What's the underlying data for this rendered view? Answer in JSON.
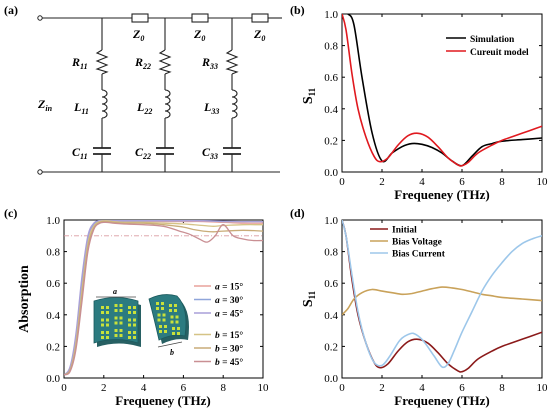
{
  "figure": {
    "panel_a": {
      "label": "(a)",
      "zin_label": "Z",
      "zin_sub": "in",
      "z0_label": "Z",
      "z0_sub": "0",
      "r_labels": [
        "R",
        "R",
        "R"
      ],
      "r_subs": [
        "11",
        "22",
        "33"
      ],
      "l_labels": [
        "L",
        "L",
        "L"
      ],
      "l_subs": [
        "11",
        "22",
        "33"
      ],
      "c_labels": [
        "C",
        "C",
        "C"
      ],
      "c_subs": [
        "11",
        "22",
        "33"
      ]
    },
    "panel_b": {
      "label": "(b)"
    },
    "panel_c": {
      "label": "(c)",
      "inset_label_a": "a",
      "inset_label_b": "b"
    },
    "panel_d": {
      "label": "(d)"
    }
  },
  "chart_data": [
    {
      "type": "line",
      "panel": "b",
      "xlabel": "Frequeney (THz)",
      "ylabel": "S",
      "ylabel_sub": "11",
      "xlim": [
        0,
        10
      ],
      "ylim": [
        0,
        1.0
      ],
      "xticks": [
        "0",
        "2",
        "4",
        "6",
        "8",
        "10"
      ],
      "yticks": [
        "0.0",
        "0.2",
        "0.4",
        "0.6",
        "0.8",
        "1.0"
      ],
      "legend_position": "top-right",
      "series": [
        {
          "name": "Simulation",
          "color": "#000000",
          "x": [
            0,
            0.3,
            0.6,
            1.0,
            1.5,
            2.0,
            2.5,
            3.0,
            3.5,
            4.0,
            4.5,
            5.0,
            5.5,
            6.0,
            6.5,
            7.0,
            7.5,
            8.0,
            9.0,
            10.0
          ],
          "y": [
            1.0,
            1.0,
            0.93,
            0.6,
            0.25,
            0.07,
            0.12,
            0.16,
            0.18,
            0.175,
            0.155,
            0.12,
            0.07,
            0.04,
            0.1,
            0.16,
            0.18,
            0.195,
            0.205,
            0.215
          ]
        },
        {
          "name": "Cureuit model",
          "color": "#e0191f",
          "x": [
            0,
            0.2,
            0.5,
            0.8,
            1.2,
            1.6,
            1.9,
            2.3,
            2.8,
            3.3,
            3.8,
            4.3,
            4.8,
            5.3,
            5.8,
            6.0,
            6.3,
            6.8,
            7.5,
            8.0,
            9.0,
            10.0
          ],
          "y": [
            1.0,
            0.9,
            0.62,
            0.4,
            0.22,
            0.1,
            0.065,
            0.09,
            0.17,
            0.23,
            0.245,
            0.22,
            0.16,
            0.09,
            0.045,
            0.04,
            0.06,
            0.12,
            0.17,
            0.2,
            0.245,
            0.29
          ]
        }
      ]
    },
    {
      "type": "line",
      "panel": "c",
      "xlabel": "Frequeney (THz)",
      "ylabel": "Absorption",
      "xlim": [
        0,
        10
      ],
      "ylim": [
        0,
        1.0
      ],
      "xticks": [
        "0",
        "2",
        "4",
        "6",
        "8",
        "10"
      ],
      "yticks": [
        "0.0",
        "0.2",
        "0.4",
        "0.6",
        "0.8",
        "1.0"
      ],
      "reference_line": 0.9,
      "legend_position": "bottom-right",
      "series": [
        {
          "name": "a = 15°",
          "legend_var": "a",
          "legend_val": " = 15°",
          "color": "#e9a29c",
          "x": [
            0,
            0.3,
            0.6,
            0.9,
            1.2,
            1.5,
            1.8,
            2.1,
            2.5,
            3.0,
            4.0,
            5.0,
            6.0,
            7.0,
            8.0,
            9.0,
            10.0
          ],
          "y": [
            0.02,
            0.06,
            0.25,
            0.6,
            0.88,
            0.97,
            0.99,
            0.995,
            0.995,
            0.99,
            0.99,
            0.99,
            0.99,
            0.99,
            0.985,
            0.98,
            0.98
          ]
        },
        {
          "name": "a = 30°",
          "legend_var": "a",
          "legend_val": " = 30°",
          "color": "#8fa5da",
          "x": [
            0,
            0.3,
            0.6,
            0.9,
            1.2,
            1.5,
            1.8,
            2.1,
            2.5,
            3.0,
            4.0,
            5.0,
            6.0,
            7.0,
            8.0,
            9.0,
            10.0
          ],
          "y": [
            0.02,
            0.06,
            0.26,
            0.62,
            0.89,
            0.975,
            0.995,
            0.998,
            0.997,
            0.995,
            0.995,
            0.995,
            0.995,
            0.995,
            0.99,
            0.99,
            0.99
          ]
        },
        {
          "name": "a = 45°",
          "legend_var": "a",
          "legend_val": " = 45°",
          "color": "#a89fd8",
          "x": [
            0,
            0.3,
            0.6,
            0.9,
            1.2,
            1.5,
            1.8,
            2.1,
            2.5,
            3.0,
            4.0,
            5.0,
            6.0,
            7.0,
            8.0,
            9.0,
            10.0
          ],
          "y": [
            0.02,
            0.07,
            0.28,
            0.64,
            0.9,
            0.98,
            0.997,
            0.999,
            0.998,
            0.997,
            0.997,
            0.996,
            0.996,
            0.995,
            0.993,
            0.99,
            0.99
          ]
        },
        {
          "name": "b = 15°",
          "legend_var": "b",
          "legend_val": " = 15°",
          "color": "#d5c386",
          "x": [
            0,
            0.3,
            0.6,
            0.9,
            1.2,
            1.5,
            1.8,
            2.1,
            2.5,
            3.0,
            4.0,
            5.0,
            6.0,
            6.5,
            7.0,
            7.5,
            8.0,
            9.0,
            10.0
          ],
          "y": [
            0.02,
            0.05,
            0.22,
            0.55,
            0.85,
            0.96,
            0.99,
            0.995,
            0.99,
            0.985,
            0.985,
            0.98,
            0.975,
            0.97,
            0.965,
            0.96,
            0.965,
            0.97,
            0.97
          ]
        },
        {
          "name": "b = 30°",
          "legend_var": "b",
          "legend_val": " = 30°",
          "color": "#c9ac78",
          "x": [
            0,
            0.3,
            0.6,
            0.9,
            1.2,
            1.5,
            1.8,
            2.1,
            2.5,
            3.0,
            4.0,
            5.0,
            6.0,
            6.5,
            7.0,
            7.5,
            8.0,
            9.0,
            10.0
          ],
          "y": [
            0.02,
            0.05,
            0.2,
            0.52,
            0.83,
            0.95,
            0.985,
            0.99,
            0.985,
            0.98,
            0.98,
            0.97,
            0.955,
            0.94,
            0.93,
            0.925,
            0.93,
            0.935,
            0.93
          ]
        },
        {
          "name": "b = 45°",
          "legend_var": "b",
          "legend_val": " = 45°",
          "color": "#c98f93",
          "x": [
            0,
            0.3,
            0.6,
            0.9,
            1.2,
            1.5,
            1.8,
            2.1,
            2.5,
            3.0,
            4.0,
            5.0,
            5.8,
            6.3,
            6.8,
            7.2,
            7.6,
            8.0,
            8.5,
            9.0,
            9.5,
            10.0
          ],
          "y": [
            0.02,
            0.04,
            0.18,
            0.48,
            0.8,
            0.94,
            0.98,
            0.985,
            0.98,
            0.975,
            0.97,
            0.96,
            0.93,
            0.91,
            0.88,
            0.86,
            0.9,
            0.97,
            0.9,
            0.88,
            0.87,
            0.87
          ]
        }
      ]
    },
    {
      "type": "line",
      "panel": "d",
      "xlabel": "Frequeney (THz)",
      "ylabel": "S",
      "ylabel_sub": "11",
      "xlim": [
        0,
        10
      ],
      "ylim": [
        0,
        1.0
      ],
      "xticks": [
        "0",
        "2",
        "4",
        "6",
        "8",
        "10"
      ],
      "yticks": [
        "0.0",
        "0.2",
        "0.4",
        "0.6",
        "0.8",
        "1.0"
      ],
      "legend_position": "top-left",
      "series": [
        {
          "name": "Initial",
          "color": "#8b1a1a",
          "x": [
            0,
            0.2,
            0.5,
            0.8,
            1.2,
            1.6,
            1.9,
            2.3,
            2.8,
            3.3,
            3.8,
            4.3,
            4.8,
            5.3,
            5.8,
            6.0,
            6.3,
            6.8,
            7.5,
            8.0,
            9.0,
            10.0
          ],
          "y": [
            1.0,
            0.9,
            0.62,
            0.4,
            0.22,
            0.1,
            0.065,
            0.09,
            0.17,
            0.23,
            0.245,
            0.22,
            0.16,
            0.09,
            0.045,
            0.04,
            0.06,
            0.12,
            0.17,
            0.2,
            0.245,
            0.29
          ]
        },
        {
          "name": "Bias Voltage",
          "color": "#c9a25a",
          "x": [
            0,
            0.3,
            0.6,
            1.0,
            1.5,
            2.0,
            2.5,
            3.0,
            3.5,
            4.0,
            4.5,
            5.0,
            5.5,
            6.0,
            6.5,
            7.0,
            7.5,
            8.0,
            9.0,
            10.0
          ],
          "y": [
            0.4,
            0.44,
            0.5,
            0.54,
            0.56,
            0.55,
            0.54,
            0.53,
            0.535,
            0.55,
            0.565,
            0.575,
            0.57,
            0.56,
            0.545,
            0.53,
            0.52,
            0.51,
            0.5,
            0.49
          ]
        },
        {
          "name": "Bias Current",
          "color": "#9dc7ea",
          "x": [
            0,
            0.2,
            0.5,
            0.8,
            1.2,
            1.6,
            2.0,
            2.4,
            2.9,
            3.4,
            3.7,
            4.1,
            4.6,
            5.0,
            5.3,
            5.6,
            6.0,
            6.5,
            7.0,
            7.5,
            8.0,
            8.5,
            9.0,
            9.5,
            10.0
          ],
          "y": [
            1.0,
            0.9,
            0.65,
            0.42,
            0.22,
            0.1,
            0.08,
            0.14,
            0.24,
            0.28,
            0.275,
            0.23,
            0.14,
            0.07,
            0.09,
            0.17,
            0.29,
            0.42,
            0.55,
            0.65,
            0.73,
            0.8,
            0.85,
            0.88,
            0.9
          ]
        }
      ]
    }
  ]
}
